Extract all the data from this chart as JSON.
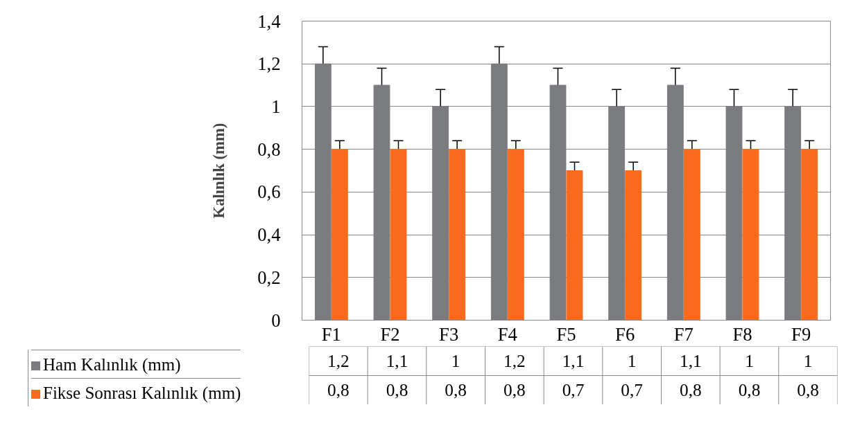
{
  "chart_data": {
    "type": "bar",
    "ylabel": "Kalınlık (mm)",
    "categories": [
      "F1",
      "F2",
      "F3",
      "F4",
      "F5",
      "F6",
      "F7",
      "F8",
      "F9"
    ],
    "series": [
      {
        "name": "Ham Kalınlık (mm)",
        "color": "#7b7c7f",
        "values": [
          1.2,
          1.1,
          1,
          1.2,
          1.1,
          1,
          1.1,
          1,
          1
        ],
        "errors": [
          [
            1.2,
            1.28
          ],
          [
            1.1,
            1.18
          ],
          [
            1,
            1.08
          ],
          [
            1.2,
            1.28
          ],
          [
            1.1,
            1.18
          ],
          [
            1,
            1.08
          ],
          [
            1.1,
            1.18
          ],
          [
            1,
            1.08
          ],
          [
            1,
            1.08
          ]
        ],
        "value_labels": [
          "1,2",
          "1,1",
          "1",
          "1,2",
          "1,1",
          "1",
          "1,1",
          "1",
          "1"
        ]
      },
      {
        "name": "Fikse Sonrası Kalınlık (mm)",
        "color": "#f96b1e",
        "values": [
          0.8,
          0.8,
          0.8,
          0.8,
          0.7,
          0.7,
          0.8,
          0.8,
          0.8
        ],
        "errors": [
          [
            0.8,
            0.84
          ],
          [
            0.8,
            0.84
          ],
          [
            0.8,
            0.84
          ],
          [
            0.8,
            0.84
          ],
          [
            0.7,
            0.74
          ],
          [
            0.7,
            0.74
          ],
          [
            0.8,
            0.84
          ],
          [
            0.8,
            0.84
          ],
          [
            0.8,
            0.84
          ]
        ],
        "value_labels": [
          "0,8",
          "0,8",
          "0,8",
          "0,8",
          "0,7",
          "0,7",
          "0,8",
          "0,8",
          "0,8"
        ]
      }
    ],
    "ylim": [
      0,
      1.4
    ],
    "yticks": [
      0,
      {
        "value": 0.2,
        "label": "0,2"
      },
      {
        "value": 0.4,
        "label": "0,4"
      },
      {
        "value": 0.6,
        "label": "0,6"
      },
      {
        "value": 0.8,
        "label": "0,8"
      },
      1,
      {
        "value": 1.2,
        "label": "1,2"
      },
      {
        "value": 1.4,
        "label": "1,4"
      }
    ],
    "grid": "y",
    "legend": "bottom"
  }
}
